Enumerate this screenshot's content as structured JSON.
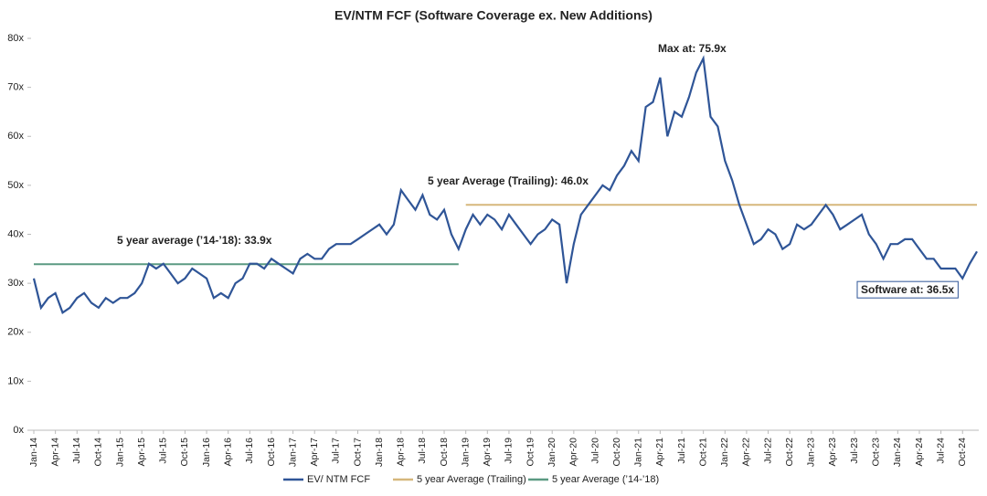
{
  "chart_data": {
    "type": "line",
    "title": "EV/NTM FCF (Software Coverage ex. New Additions)",
    "categories": [
      "Jan-14",
      null,
      null,
      "Apr-14",
      null,
      null,
      "Jul-14",
      null,
      null,
      "Oct-14",
      null,
      null,
      "Jan-15",
      null,
      null,
      "Apr-15",
      null,
      null,
      "Jul-15",
      null,
      null,
      "Oct-15",
      null,
      null,
      "Jan-16",
      null,
      null,
      "Apr-16",
      null,
      null,
      "Jul-16",
      null,
      null,
      "Oct-16",
      null,
      null,
      "Jan-17",
      null,
      null,
      "Apr-17",
      null,
      null,
      "Jul-17",
      null,
      null,
      "Oct-17",
      null,
      null,
      "Jan-18",
      null,
      null,
      "Apr-18",
      null,
      null,
      "Jul-18",
      null,
      null,
      "Oct-18",
      null,
      null,
      "Jan-19",
      null,
      null,
      "Apr-19",
      null,
      null,
      "Jul-19",
      null,
      null,
      "Oct-19",
      null,
      null,
      "Jan-20",
      null,
      null,
      "Apr-20",
      null,
      null,
      "Jul-20",
      null,
      null,
      "Oct-20",
      null,
      null,
      "Jan-21",
      null,
      null,
      "Apr-21",
      null,
      null,
      "Jul-21",
      null,
      null,
      "Oct-21",
      null,
      null,
      "Jan-22",
      null,
      null,
      "Apr-22",
      null,
      null,
      "Jul-22",
      null,
      null,
      "Oct-22",
      null,
      null,
      "Jan-23",
      null,
      null,
      "Apr-23",
      null,
      null,
      "Jul-23",
      null,
      null,
      "Oct-23",
      null,
      null,
      "Jan-24",
      null,
      null,
      "Apr-24",
      null,
      null,
      "Jul-24",
      null,
      null,
      "Oct-24",
      null,
      null
    ],
    "series": [
      {
        "name": "EV/ NTM FCF",
        "color": "#2f5597",
        "values": [
          31,
          25,
          27,
          28,
          24,
          25,
          27,
          28,
          26,
          25,
          27,
          26,
          27,
          27,
          28,
          30,
          34,
          33,
          34,
          32,
          30,
          31,
          33,
          32,
          31,
          27,
          28,
          27,
          30,
          31,
          34,
          34,
          33,
          35,
          34,
          33,
          32,
          35,
          36,
          35,
          35,
          37,
          38,
          38,
          38,
          39,
          40,
          41,
          42,
          40,
          42,
          49,
          47,
          45,
          48,
          44,
          43,
          45,
          40,
          37,
          41,
          44,
          42,
          44,
          43,
          41,
          44,
          42,
          40,
          38,
          40,
          41,
          43,
          42,
          30,
          38,
          44,
          46,
          48,
          50,
          49,
          52,
          54,
          57,
          55,
          66,
          67,
          72,
          60,
          65,
          64,
          68,
          73,
          75.9,
          64,
          62,
          55,
          51,
          46,
          42,
          38,
          39,
          41,
          40,
          37,
          38,
          42,
          41,
          42,
          44,
          46,
          44,
          41,
          42,
          43,
          44,
          40,
          38,
          35,
          38,
          38,
          39,
          39,
          37,
          35,
          35,
          33,
          33,
          33,
          31,
          34,
          36.5
        ]
      },
      {
        "name": "5 year Average (Trailing)",
        "color": "#d6b77c",
        "values": [
          null,
          null,
          null,
          null,
          null,
          null,
          null,
          null,
          null,
          null,
          null,
          null,
          null,
          null,
          null,
          null,
          null,
          null,
          null,
          null,
          null,
          null,
          null,
          null,
          null,
          null,
          null,
          null,
          null,
          null,
          null,
          null,
          null,
          null,
          null,
          null,
          null,
          null,
          null,
          null,
          null,
          null,
          null,
          null,
          null,
          null,
          null,
          null,
          null,
          null,
          null,
          null,
          null,
          null,
          null,
          null,
          null,
          null,
          null,
          null,
          46,
          46,
          46,
          46,
          46,
          46,
          46,
          46,
          46,
          46,
          46,
          46,
          46,
          46,
          46,
          46,
          46,
          46,
          46,
          46,
          46,
          46,
          46,
          46,
          46,
          46,
          46,
          46,
          46,
          46,
          46,
          46,
          46,
          46,
          46,
          46,
          46,
          46,
          46,
          46,
          46,
          46,
          46,
          46,
          46,
          46,
          46,
          46,
          46,
          46,
          46,
          46,
          46,
          46,
          46,
          46,
          46,
          46,
          46,
          46,
          46,
          46,
          46,
          46,
          46,
          46,
          46,
          46,
          46,
          46,
          46,
          46
        ]
      },
      {
        "name": "5 year Average (’14-’18)",
        "color": "#5b9a82",
        "values": [
          33.9,
          33.9,
          33.9,
          33.9,
          33.9,
          33.9,
          33.9,
          33.9,
          33.9,
          33.9,
          33.9,
          33.9,
          33.9,
          33.9,
          33.9,
          33.9,
          33.9,
          33.9,
          33.9,
          33.9,
          33.9,
          33.9,
          33.9,
          33.9,
          33.9,
          33.9,
          33.9,
          33.9,
          33.9,
          33.9,
          33.9,
          33.9,
          33.9,
          33.9,
          33.9,
          33.9,
          33.9,
          33.9,
          33.9,
          33.9,
          33.9,
          33.9,
          33.9,
          33.9,
          33.9,
          33.9,
          33.9,
          33.9,
          33.9,
          33.9,
          33.9,
          33.9,
          33.9,
          33.9,
          33.9,
          33.9,
          33.9,
          33.9,
          33.9,
          33.9,
          null,
          null,
          null,
          null,
          null,
          null,
          null,
          null,
          null,
          null,
          null,
          null,
          null,
          null,
          null,
          null,
          null,
          null,
          null,
          null,
          null,
          null,
          null,
          null,
          null,
          null,
          null,
          null,
          null,
          null,
          null,
          null,
          null,
          null,
          null,
          null,
          null,
          null,
          null,
          null,
          null,
          null,
          null,
          null,
          null,
          null,
          null,
          null,
          null,
          null,
          null,
          null,
          null,
          null,
          null,
          null,
          null,
          null,
          null,
          null,
          null,
          null,
          null,
          null,
          null,
          null,
          null,
          null,
          null,
          null,
          null,
          null
        ]
      }
    ],
    "annotations": [
      "5 year average (’14-’18): 33.9x",
      "5 year Average (Trailing): 46.0x",
      "Max at: 75.9x",
      "Software at: 36.5x"
    ],
    "ylim": [
      0,
      80
    ],
    "yticks": [
      {
        "value": 0,
        "label": "0x"
      },
      {
        "value": 10,
        "label": "10x"
      },
      {
        "value": 20,
        "label": "20x"
      },
      {
        "value": 30,
        "label": "30x"
      },
      {
        "value": 40,
        "label": "40x"
      },
      {
        "value": 50,
        "label": "50x"
      },
      {
        "value": 60,
        "label": "60x"
      },
      {
        "value": 70,
        "label": "70x"
      },
      {
        "value": 80,
        "label": "80x"
      }
    ],
    "legend": "bottom"
  }
}
